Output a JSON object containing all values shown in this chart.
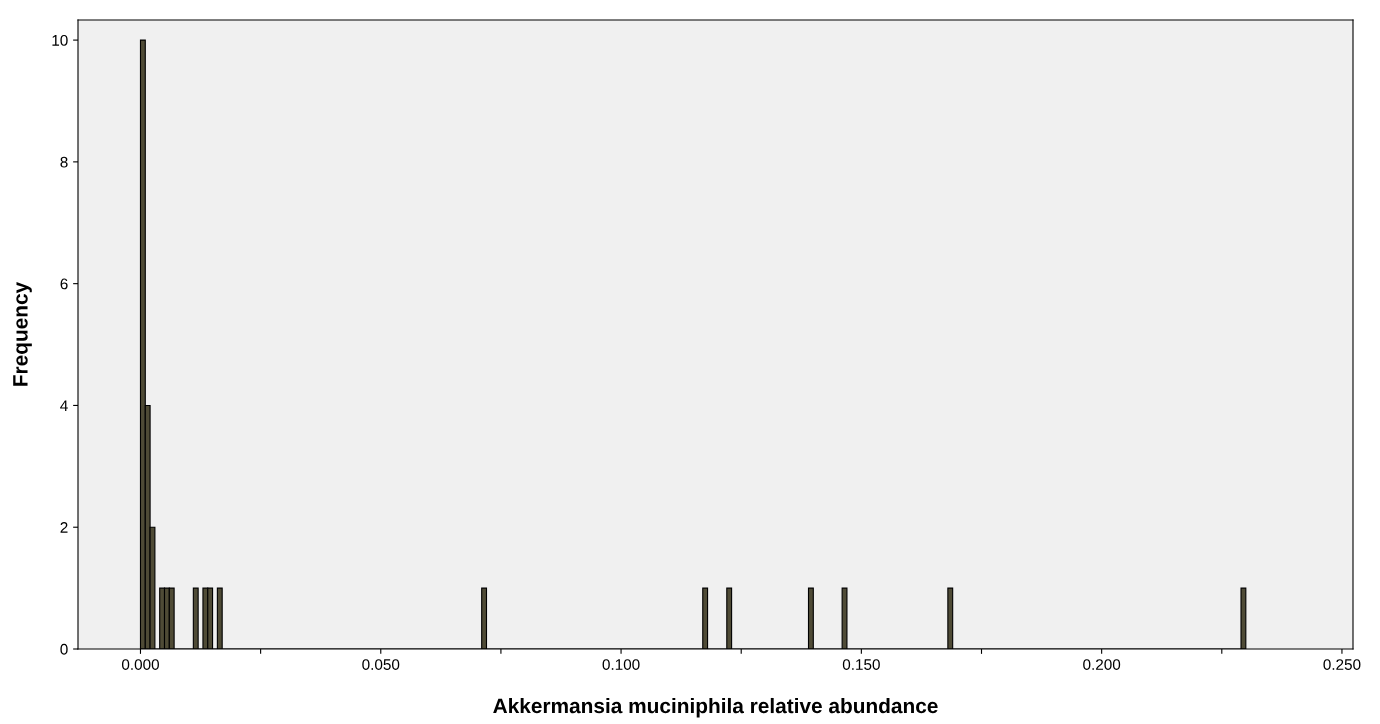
{
  "chart_data": {
    "type": "histogram",
    "xlabel": "Akkermansia muciniphila relative abundance",
    "ylabel": "Frequency",
    "bins": [
      0,
      0.001,
      0.002,
      0.003,
      0.004,
      0.005,
      0.006,
      0.007,
      0.011,
      0.012,
      0.013,
      0.014,
      0.015,
      0.016,
      0.017,
      0.071,
      0.072,
      0.117,
      0.118,
      0.122,
      0.123,
      0.139,
      0.14,
      0.146,
      0.147,
      0.168,
      0.169,
      0.229,
      0.23
    ],
    "values": [
      10,
      4,
      2,
      0,
      1,
      1,
      1,
      0,
      1,
      0,
      1,
      1,
      0,
      1,
      0,
      1,
      0,
      1,
      0,
      1,
      0,
      1,
      0,
      1,
      0,
      1,
      0,
      1
    ],
    "color": "#4f4b36",
    "xlim": [
      -0.013,
      0.2523
    ],
    "ylim": [
      0,
      10.33
    ],
    "xticks": [
      {
        "value": 0,
        "label": "0.000"
      },
      {
        "value": 0.025,
        "label": null
      },
      {
        "value": 0.05,
        "label": "0.050"
      },
      {
        "value": 0.075,
        "label": null
      },
      {
        "value": 0.1,
        "label": "0.100"
      },
      {
        "value": 0.125,
        "label": null
      },
      {
        "value": 0.15,
        "label": "0.150"
      },
      {
        "value": 0.175,
        "label": null
      },
      {
        "value": 0.2,
        "label": "0.200"
      },
      {
        "value": 0.225,
        "label": null
      },
      {
        "value": 0.25,
        "label": "0.250"
      }
    ],
    "yticks": [
      0,
      2,
      4,
      6,
      8,
      10
    ],
    "grid": false,
    "legend": false
  }
}
